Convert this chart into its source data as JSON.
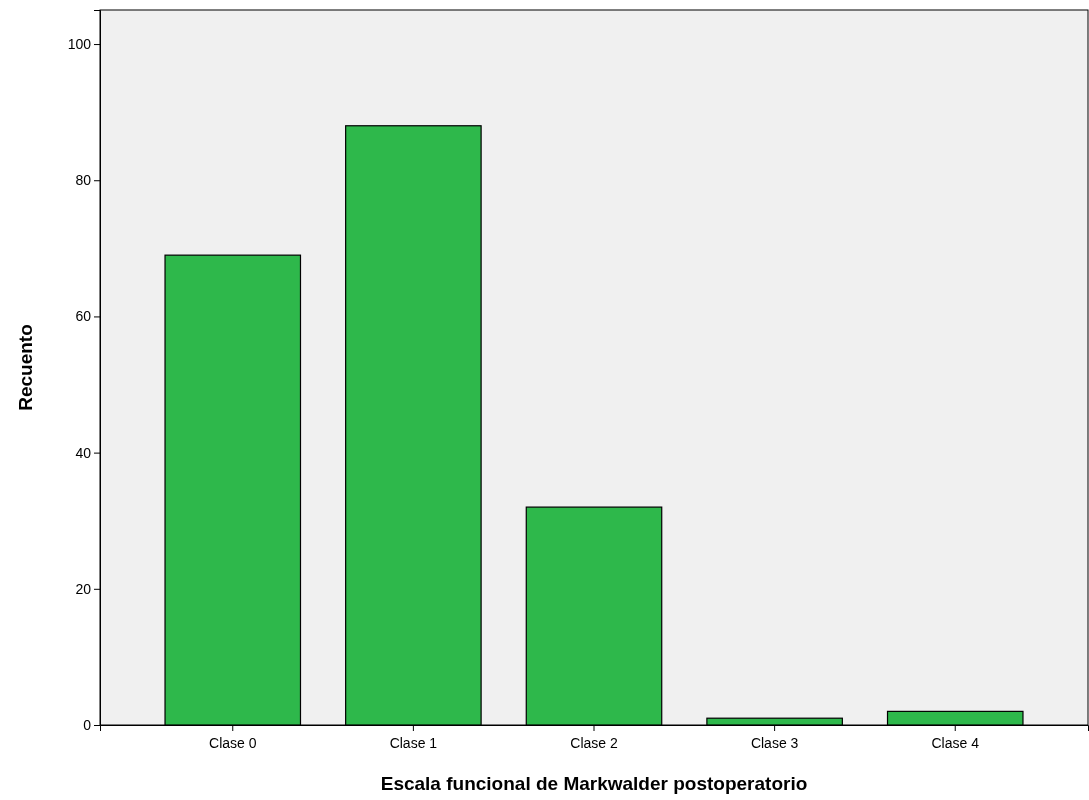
{
  "chart_data": {
    "type": "bar",
    "xlabel": "Escala funcional de Markwalder postoperatorio",
    "ylabel": "Recuento",
    "categories": [
      "Clase 0",
      "Clase 1",
      "Clase 2",
      "Clase 3",
      "Clase 4"
    ],
    "values": [
      69,
      88,
      32,
      1,
      2
    ],
    "color": "#2eb84b",
    "ylim": [
      0,
      105
    ],
    "yticks": [
      0,
      20,
      40,
      60,
      80,
      100
    ],
    "grid": false
  }
}
